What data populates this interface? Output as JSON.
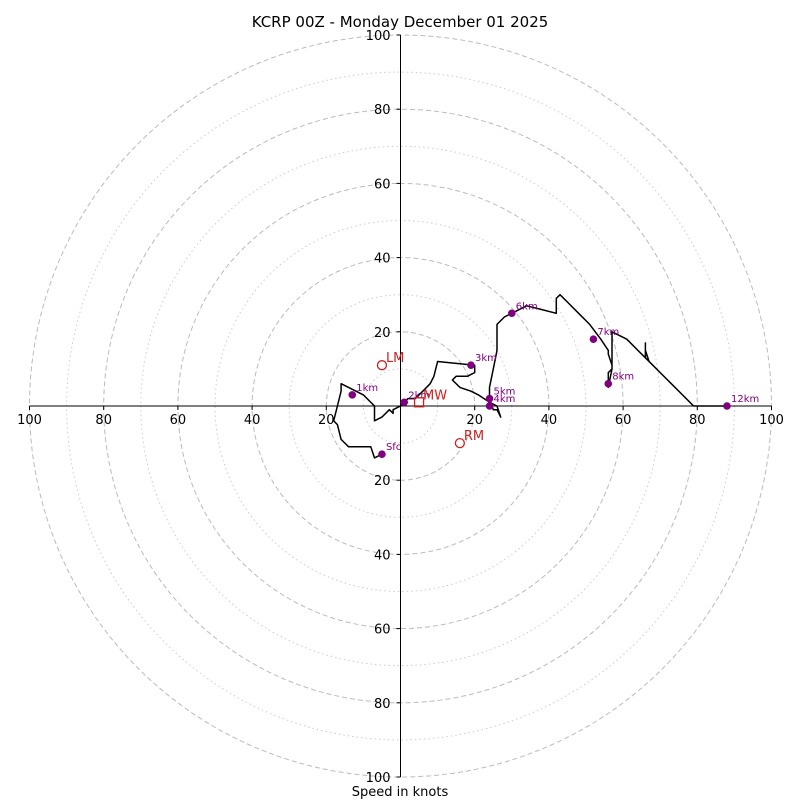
{
  "chart_data": {
    "type": "hodograph",
    "title": "KCRP 00Z - Monday December 01 2025",
    "xlabel": "Speed in knots",
    "units": "knots",
    "range": [
      -100,
      100
    ],
    "dashed_rings": [
      20,
      40,
      60,
      80,
      100
    ],
    "dotted_rings": [
      10,
      30,
      50,
      70,
      90
    ],
    "x_ticks": [
      {
        "value": -100,
        "label": "100"
      },
      {
        "value": -80,
        "label": "80"
      },
      {
        "value": -60,
        "label": "60"
      },
      {
        "value": -40,
        "label": "40"
      },
      {
        "value": -20,
        "label": "20"
      },
      {
        "value": 20,
        "label": "20"
      },
      {
        "value": 40,
        "label": "40"
      },
      {
        "value": 60,
        "label": "60"
      },
      {
        "value": 80,
        "label": "80"
      },
      {
        "value": 100,
        "label": "100"
      }
    ],
    "y_ticks": [
      {
        "value": 100,
        "label": "100"
      },
      {
        "value": 80,
        "label": "80"
      },
      {
        "value": 60,
        "label": "60"
      },
      {
        "value": 40,
        "label": "40"
      },
      {
        "value": 20,
        "label": "20"
      },
      {
        "value": -20,
        "label": "20"
      },
      {
        "value": -40,
        "label": "40"
      },
      {
        "value": -60,
        "label": "60"
      },
      {
        "value": -80,
        "label": "80"
      },
      {
        "value": -100,
        "label": "100"
      }
    ],
    "hodograph_trace": [
      [
        -5,
        -13
      ],
      [
        -7,
        -14
      ],
      [
        -8,
        -11
      ],
      [
        -9,
        -11
      ],
      [
        -14,
        -11
      ],
      [
        -16,
        -9
      ],
      [
        -17,
        -5
      ],
      [
        -18,
        -4
      ],
      [
        -17,
        0
      ],
      [
        -16,
        4
      ],
      [
        -16,
        6
      ],
      [
        -14,
        5
      ],
      [
        -12,
        4
      ],
      [
        -10,
        3
      ],
      [
        -9,
        2
      ],
      [
        -7,
        0
      ],
      [
        -7,
        -4
      ],
      [
        -5,
        -3
      ],
      [
        -3,
        -1
      ],
      [
        -2,
        -2
      ],
      [
        -2,
        -1
      ],
      [
        0,
        0
      ],
      [
        1,
        1
      ],
      [
        2,
        2
      ],
      [
        4,
        2
      ],
      [
        6,
        4
      ],
      [
        8,
        6
      ],
      [
        9,
        8
      ],
      [
        10,
        12
      ],
      [
        20,
        11
      ],
      [
        20,
        9
      ],
      [
        18,
        8
      ],
      [
        17,
        8
      ],
      [
        15,
        8
      ],
      [
        14,
        7
      ],
      [
        16,
        5
      ],
      [
        19,
        4
      ],
      [
        21,
        3
      ],
      [
        24,
        1
      ],
      [
        26,
        0
      ],
      [
        27,
        -3
      ],
      [
        26,
        -1
      ],
      [
        25,
        -1
      ],
      [
        24,
        2
      ],
      [
        24,
        4
      ],
      [
        24,
        5
      ],
      [
        25,
        10
      ],
      [
        26,
        15
      ],
      [
        26,
        18
      ],
      [
        26,
        22
      ],
      [
        28,
        24
      ],
      [
        30,
        25
      ],
      [
        34,
        27
      ],
      [
        38,
        26
      ],
      [
        42,
        25
      ],
      [
        42,
        29
      ],
      [
        43,
        30
      ],
      [
        45,
        28
      ],
      [
        48,
        25
      ],
      [
        51,
        22
      ],
      [
        54,
        18
      ],
      [
        56,
        15
      ],
      [
        56,
        14
      ],
      [
        57,
        11
      ],
      [
        57,
        10
      ],
      [
        56,
        9
      ],
      [
        56,
        5
      ],
      [
        57,
        10
      ],
      [
        57,
        14
      ],
      [
        57,
        17
      ],
      [
        57,
        20
      ],
      [
        61,
        18
      ],
      [
        64,
        15
      ],
      [
        66,
        13
      ],
      [
        67,
        12
      ],
      [
        66,
        15
      ],
      [
        66,
        17
      ],
      [
        66,
        13
      ],
      [
        68,
        11
      ],
      [
        70,
        9
      ],
      [
        73,
        6
      ],
      [
        76,
        3
      ],
      [
        78,
        1
      ],
      [
        79,
        0
      ],
      [
        82,
        0
      ],
      [
        84,
        0
      ],
      [
        86,
        0
      ],
      [
        88,
        0
      ]
    ],
    "height_markers": [
      {
        "label": "Sfc",
        "u": -5,
        "v": -13
      },
      {
        "label": "1km",
        "u": -13,
        "v": 3
      },
      {
        "label": "2km",
        "u": 1,
        "v": 1
      },
      {
        "label": "3km",
        "u": 19,
        "v": 11
      },
      {
        "label": "4km",
        "u": 24,
        "v": 0
      },
      {
        "label": "5km",
        "u": 24,
        "v": 2
      },
      {
        "label": "6km",
        "u": 30,
        "v": 25
      },
      {
        "label": "7km",
        "u": 52,
        "v": 18
      },
      {
        "label": "8km",
        "u": 56,
        "v": 6
      },
      {
        "label": "12km",
        "u": 88,
        "v": 0
      }
    ],
    "storm_motions": [
      {
        "label": "LM",
        "u": -5,
        "v": 11,
        "marker": "circle"
      },
      {
        "label": "MW",
        "u": 5,
        "v": 1,
        "marker": "square"
      },
      {
        "label": "RM",
        "u": 16,
        "v": -10,
        "marker": "circle"
      }
    ]
  },
  "colors": {
    "trace": "#000000",
    "markers": "#800080",
    "storm_motion": "#cc2222",
    "rings": "#bbbbbb",
    "axis": "#000000"
  }
}
